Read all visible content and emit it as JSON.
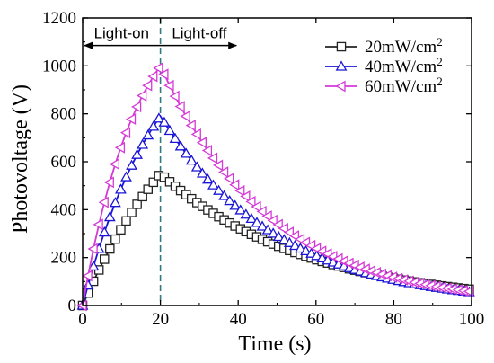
{
  "chart_data": {
    "type": "line",
    "xlabel": "Time (s)",
    "ylabel": "Photovoltage (V)",
    "xlim": [
      0,
      100
    ],
    "ylim": [
      0,
      1200
    ],
    "xticks": [
      0,
      20,
      40,
      60,
      80,
      100
    ],
    "yticks": [
      0,
      200,
      400,
      600,
      800,
      1000,
      1200
    ],
    "grid": false,
    "legend_position": "top-right",
    "annotations": {
      "light_on": "Light-on",
      "light_off": "Light-off",
      "arrow_range": [
        0,
        40
      ],
      "arrow_y": 1085,
      "divider_x": 20
    },
    "marker_interval_x": 1.4,
    "series": [
      {
        "name": "20mW/cm",
        "superscript": "2",
        "color": "#222222",
        "marker": "square",
        "rise_peak": 550,
        "rise_k": 0.034,
        "decay_tau": 38
      },
      {
        "name": "40mW/cm",
        "superscript": "2",
        "color": "#1a14d6",
        "marker": "triangle-up",
        "rise_peak": 790,
        "rise_k": 0.05,
        "decay_tau": 30
      },
      {
        "name": "60mW/cm",
        "superscript": "2",
        "color": "#d43ad6",
        "marker": "triangle-left",
        "rise_peak": 1000,
        "rise_k": 0.07,
        "decay_tau": 28
      }
    ]
  }
}
